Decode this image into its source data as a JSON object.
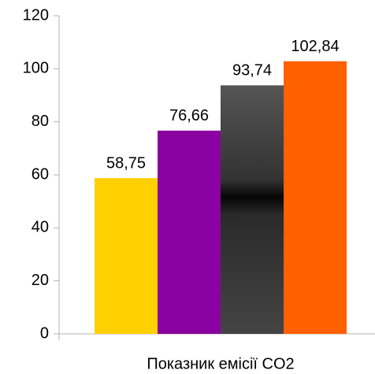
{
  "chart_data": {
    "type": "bar",
    "categories": [
      "Показник емісії CO2"
    ],
    "series": [
      {
        "color": "#ffd000",
        "values": [
          58.75
        ],
        "value_labels": [
          "58,75"
        ]
      },
      {
        "color": "#8b00a0",
        "values": [
          76.66
        ],
        "value_labels": [
          "76,66"
        ]
      },
      {
        "color": "#3c3c3c",
        "values": [
          93.74
        ],
        "value_labels": [
          "93,74"
        ]
      },
      {
        "color": "#ff6000",
        "values": [
          102.84
        ],
        "value_labels": [
          "102,84"
        ]
      }
    ],
    "ylim": [
      0,
      120
    ],
    "yticks": [
      0,
      20,
      40,
      60,
      80,
      100,
      120
    ],
    "grid": false
  }
}
